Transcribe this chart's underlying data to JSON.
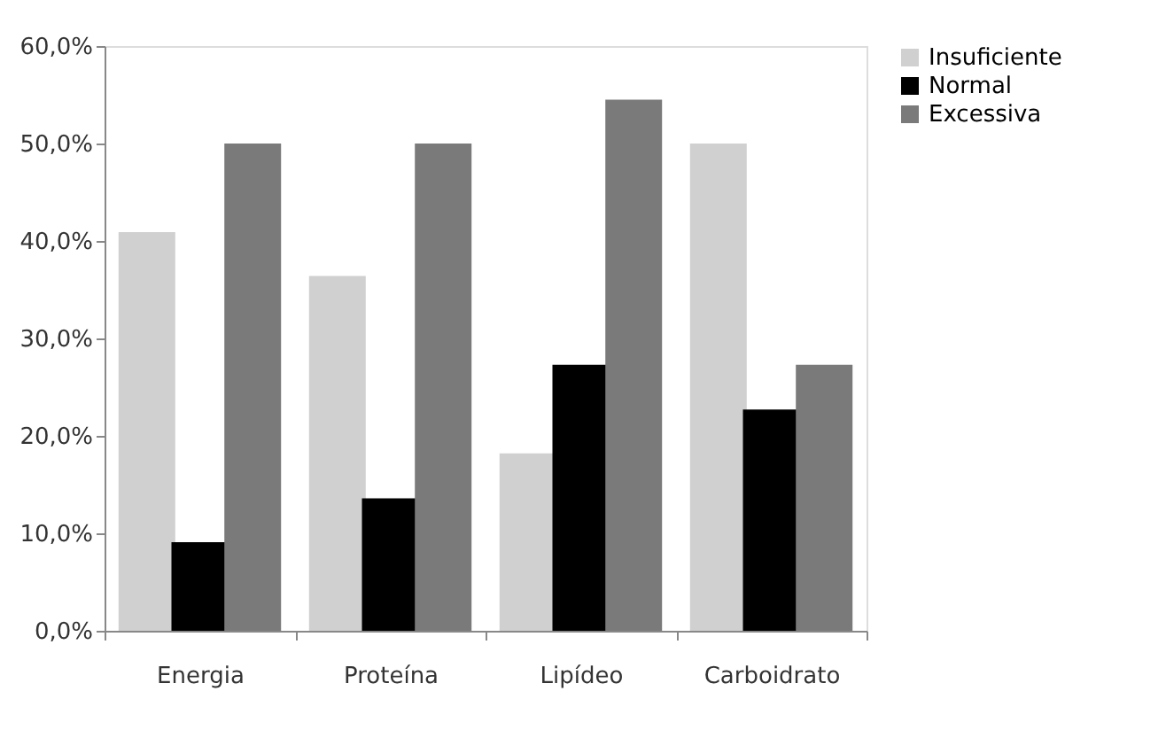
{
  "chart_data": {
    "type": "bar",
    "categories": [
      "Energia",
      "Proteína",
      "Lipídeo",
      "Carboidrato"
    ],
    "series": [
      {
        "name": "Insuficiente",
        "color": "#d0d0d0",
        "values": [
          40.9,
          36.4,
          18.2,
          50.0
        ]
      },
      {
        "name": "Normal",
        "color": "#000000",
        "values": [
          9.1,
          13.6,
          27.3,
          22.7
        ]
      },
      {
        "name": "Excessiva",
        "color": "#7a7a7a",
        "values": [
          50.0,
          50.0,
          54.5,
          27.3
        ]
      }
    ],
    "ylim": [
      0,
      60
    ],
    "yticks": [
      {
        "value": 0,
        "label": "0,0%"
      },
      {
        "value": 10,
        "label": "10,0%"
      },
      {
        "value": 20,
        "label": "20,0%"
      },
      {
        "value": 30,
        "label": "30,0%"
      },
      {
        "value": 40,
        "label": "40,0%"
      },
      {
        "value": 50,
        "label": "50,0%"
      },
      {
        "value": 60,
        "label": "60,0%"
      }
    ],
    "grid": false,
    "legend": "right"
  }
}
